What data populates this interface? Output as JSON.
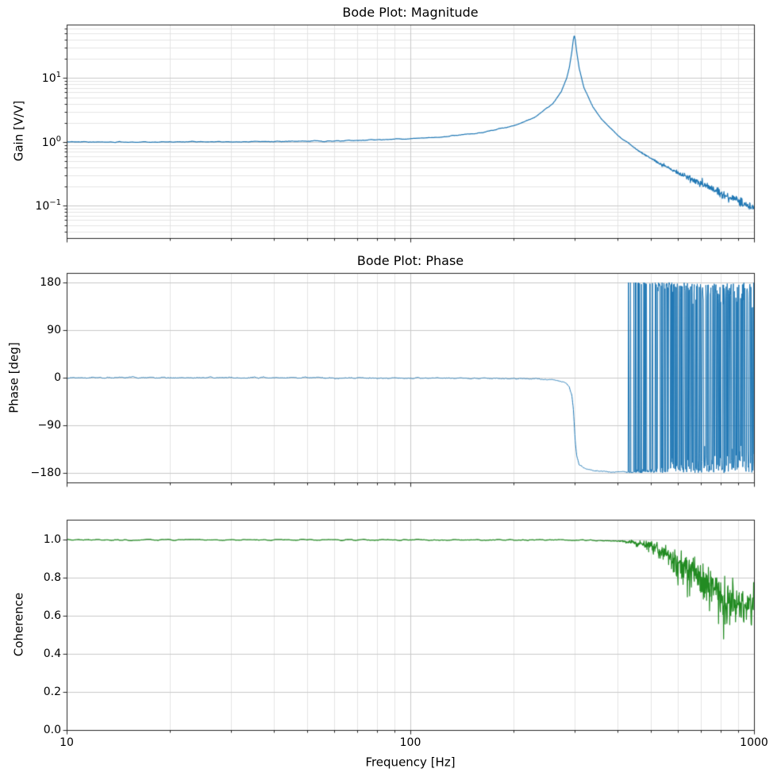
{
  "xlabel": "Frequency [Hz]",
  "xticks": [
    {
      "label": "10",
      "value": 10
    },
    {
      "label": "100",
      "value": 100
    },
    {
      "label": "1000",
      "value": 1000
    }
  ],
  "colors": {
    "background": "#ffffff",
    "axes": "#262626",
    "grid_major": "#c9c9c9",
    "grid_minor": "#e4e4e4",
    "magnitude_line": "#1f77b4",
    "phase_line": "#1f77b4",
    "coherence_line": "#228B22"
  },
  "chart_data": [
    {
      "id": "magnitude",
      "type": "line",
      "title": "Bode Plot: Magnitude",
      "ylabel": "Gain [V/V]",
      "xscale": "log",
      "yscale": "log",
      "xlim": [
        10,
        1000
      ],
      "ylim": [
        0.0314,
        68.9
      ],
      "grid": "both",
      "line_color": "#1f77b4",
      "yticks": [
        {
          "label": "10^1",
          "value": 10
        },
        {
          "label": "10^0",
          "value": 1
        },
        {
          "label": "10^−1",
          "value": 0.1
        }
      ],
      "model": {
        "kind": "second_order_resonance",
        "f0_hz": 300,
        "Q": 47,
        "dc_gain": 1.0,
        "peak_gain": 47
      },
      "points": [
        [
          10,
          1.001
        ],
        [
          15,
          1.003
        ],
        [
          20,
          1.004
        ],
        [
          30,
          1.01
        ],
        [
          40,
          1.018
        ],
        [
          60,
          1.042
        ],
        [
          80,
          1.077
        ],
        [
          100,
          1.125
        ],
        [
          130,
          1.231
        ],
        [
          160,
          1.397
        ],
        [
          200,
          1.8
        ],
        [
          230,
          2.43
        ],
        [
          260,
          4.01
        ],
        [
          275,
          6.22
        ],
        [
          285,
          10.0
        ],
        [
          290,
          14.6
        ],
        [
          295,
          25.6
        ],
        [
          298,
          40.1
        ],
        [
          300,
          47.0
        ],
        [
          302,
          39.6
        ],
        [
          305,
          25.2
        ],
        [
          310,
          14.2
        ],
        [
          320,
          7.16
        ],
        [
          340,
          3.5
        ],
        [
          360,
          2.27
        ],
        [
          400,
          1.29
        ],
        [
          450,
          0.8
        ],
        [
          500,
          0.56
        ],
        [
          600,
          0.33
        ],
        [
          700,
          0.225
        ],
        [
          800,
          0.16
        ],
        [
          900,
          0.12
        ],
        [
          1000,
          0.09
        ]
      ],
      "noise": {
        "seed": 7,
        "smooth_sigma": 0.005,
        "hf_sigma": 0.034,
        "onset": 2.57,
        "width": 0.43,
        "spike_prob": 0.012,
        "spike_mag": 0.1
      }
    },
    {
      "id": "phase",
      "type": "line",
      "title": "Bode Plot: Phase",
      "ylabel": "Phase [deg]",
      "xscale": "log",
      "yscale": "linear",
      "xlim": [
        10,
        1000
      ],
      "ylim": [
        -198,
        198
      ],
      "grid": "both-x-major-y",
      "line_color": "#1f77b4",
      "wrap_range": [
        -180,
        180
      ],
      "yticks": [
        {
          "label": "180",
          "value": 180
        },
        {
          "label": "90",
          "value": 90
        },
        {
          "label": "0",
          "value": 0
        },
        {
          "label": "−90",
          "value": -90
        },
        {
          "label": "−180",
          "value": -180
        }
      ],
      "points": [
        [
          10,
          0.0
        ],
        [
          50,
          -0.2
        ],
        [
          100,
          -0.5
        ],
        [
          150,
          -0.9
        ],
        [
          200,
          -1.5
        ],
        [
          250,
          -3.2
        ],
        [
          270,
          -5.8
        ],
        [
          280,
          -8.8
        ],
        [
          285,
          -11.7
        ],
        [
          290,
          -17.4
        ],
        [
          295,
          -32.3
        ],
        [
          298,
          -57.8
        ],
        [
          300,
          -90
        ],
        [
          302,
          -122
        ],
        [
          305,
          -147.5
        ],
        [
          310,
          -163.9
        ],
        [
          320,
          -170.7
        ],
        [
          340,
          -175.2
        ],
        [
          360,
          -176.9
        ],
        [
          400,
          -178.0
        ],
        [
          450,
          -178.6
        ],
        [
          500,
          -178.9
        ],
        [
          600,
          -179.2
        ],
        [
          700,
          -179.3
        ],
        [
          800,
          -179.4
        ],
        [
          900,
          -179.5
        ],
        [
          1000,
          -179.5
        ]
      ],
      "noise": {
        "seed": 11,
        "smooth_sigma": 0.9,
        "hf_sigma": 26,
        "onset": 2.6,
        "width": 0.42
      }
    },
    {
      "id": "coherence",
      "type": "line",
      "ylabel": "Coherence",
      "xscale": "log",
      "yscale": "linear",
      "xlim": [
        10,
        1000
      ],
      "ylim": [
        0,
        1.104
      ],
      "grid": "both-x-major-y",
      "line_color": "#228B22",
      "yticks": [
        {
          "label": "1.0",
          "value": 1.0
        },
        {
          "label": "0.8",
          "value": 0.8
        },
        {
          "label": "0.6",
          "value": 0.6
        },
        {
          "label": "0.4",
          "value": 0.4
        },
        {
          "label": "0.2",
          "value": 0.2
        },
        {
          "label": "0.0",
          "value": 0.0
        }
      ],
      "points": [
        [
          10,
          0.998
        ],
        [
          150,
          0.998
        ],
        [
          300,
          0.997
        ],
        [
          400,
          0.993
        ],
        [
          450,
          0.988
        ],
        [
          500,
          0.98
        ],
        [
          550,
          0.955
        ],
        [
          600,
          0.91
        ],
        [
          650,
          0.885
        ],
        [
          700,
          0.855
        ],
        [
          750,
          0.82
        ],
        [
          800,
          0.78
        ],
        [
          850,
          0.75
        ],
        [
          900,
          0.72
        ],
        [
          950,
          0.705
        ],
        [
          1000,
          0.7
        ]
      ],
      "noise": {
        "seed": 23,
        "smooth_sigma": 0.0025,
        "hf_amp": 0.155,
        "onset": 2.58,
        "width": 0.42,
        "spike_prob": 0.01
      }
    }
  ]
}
